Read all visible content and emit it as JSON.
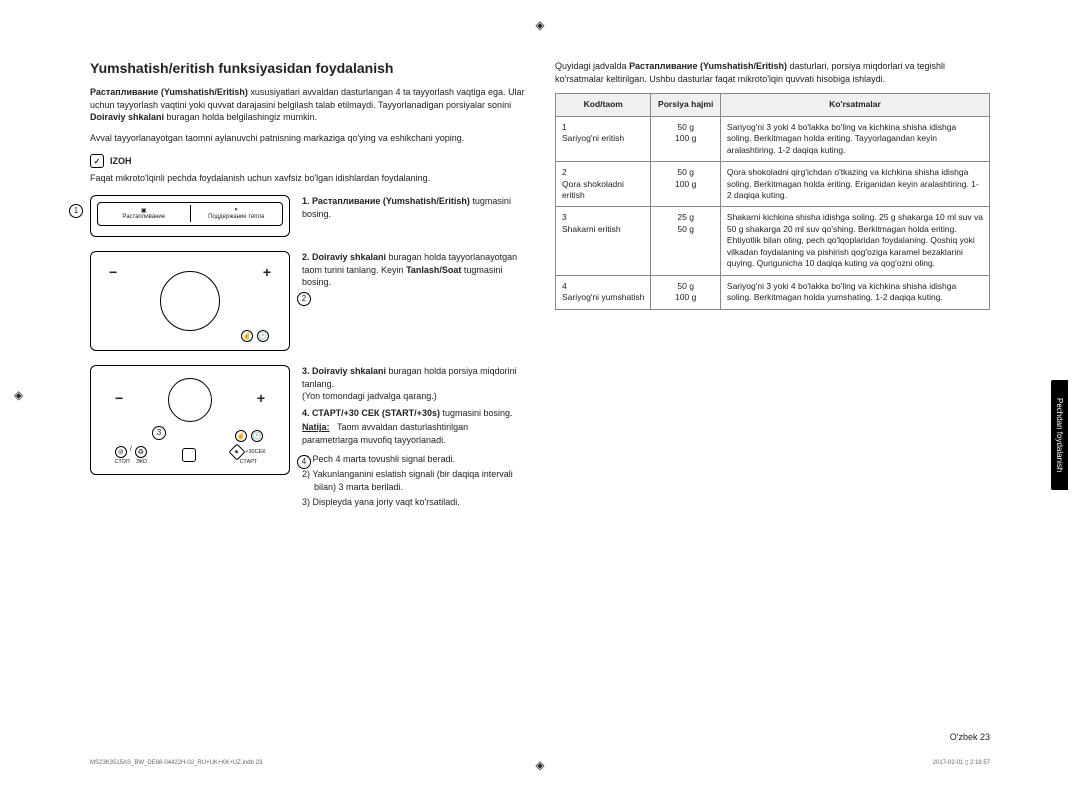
{
  "title": "Yumshatish/eritish funksiyasidan foydalanish",
  "intro": {
    "boldLead": "Растапливание (Yumshatish/Eritish)",
    "text1": " xususiyatlari avvaldan dasturlangan 4 ta tayyorlash vaqtiga ega. Ular uchun tayyorlash vaqtini yoki quvvat darajasini belgilash talab etilmaydi. Tayyorlanadigan porsiyalar sonini ",
    "bold2": "Doiraviy shkalani",
    "text2": " buragan holda belgilashingiz mumkin.",
    "text3": "Avval tayyorlanayotgan taomni aylanuvchi patnisning markaziga qo'ying va eshikchani yoping."
  },
  "noteLabel": "IZOH",
  "noteText": "Faqat mikroto'lqinli pechda foydalanish uchun xavfsiz bo'lgan idishlardan foydalaning.",
  "display": {
    "leftIcon": "▣",
    "leftLabel": "Растапливание",
    "rightIcon": "⏸",
    "rightLabel": "Поддержание тепла"
  },
  "panel": {
    "stop": "СТОП",
    "eco": "ЭКО",
    "start": "СТАРТ",
    "plus30": "+30СЕК"
  },
  "step1": {
    "bold": "1. Растапливание (Yumshatish/Eritish)",
    "tail": " tugmasini bosing."
  },
  "step2": {
    "bold": "2. Doiraviy shkalani",
    "tail": " buragan holda tayyorlanayotgan taom turini tanlang. Keyin ",
    "bold2": "Tanlash/Soat",
    "tail2": " tugmasini bosing."
  },
  "step3": {
    "bold": "3. Doiraviy shkalani",
    "tail": " buragan holda porsiya miqdorini tanlang.",
    "sub": "(Yon tomondagi jadvalga qarang.)"
  },
  "step4": {
    "bold": "4. СТАРТ/+30 СЕК (START/+30s)",
    "tail": " tugmasini bosing.",
    "resultLabel": "Natija:",
    "resultText": "Taom avvaldan dasturlashtirilgan parametrlarga muvofiq tayyorlanadi.",
    "list": [
      "1) Pech 4 marta tovushli signal beradi.",
      "2) Yakunlanganini eslatish signali (bir daqiqa intervali bilan) 3 marta beriladi.",
      "3) Displeyda yana joriy vaqt ko'rsatiladi."
    ]
  },
  "rightIntro1": "Quyidagi jadvalda ",
  "rightIntroBold": "Растапливание (Yumshatish/Eritish)",
  "rightIntro2": " dasturlari, porsiya miqdorlari va tegishli ko'rsatmalar keltirilgan. Ushbu dasturlar faqat mikroto'lqin quvvati hisobiga ishlaydi.",
  "table": {
    "headers": [
      "Kod/taom",
      "Porsiya hajmi",
      "Ko'rsatmalar"
    ],
    "rows": [
      {
        "code": "1\nSariyog'ni eritish",
        "portion": "50 g\n100 g",
        "instr": "Sariyog'ni 3 yoki 4 bo'lakka bo'ling va kichkina shisha idishga soling. Berkitmagan holda eriting. Tayyorlagandan keyin aralashtiring. 1-2 daqiqa kuting."
      },
      {
        "code": "2\nQora shokoladni eritish",
        "portion": "50 g\n100 g",
        "instr": "Qora shokoladni qirg'ichdan o'tkazing va kichkina shisha idishga soling. Berkitmagan holda eriting. Eriganidan keyin aralashtiring. 1-2 daqiqa kuting."
      },
      {
        "code": "3\nShakarni eritish",
        "portion": "25 g\n50 g",
        "instr": "Shakarni kichkina shisha idishga soling. 25 g shakarga 10 ml suv va 50 g shakarga 20 ml suv qo'shing. Berkitmagan holda eriting. Ehtiyotlik bilan oling, pech qo'lqoplaridan foydalaning. Qoshiq yoki vilkadan foydalaning va pishirish qog'oziga karamel bezaklarini quying. Qurigunicha 10 daqiqa kuting va qog'ozni oling."
      },
      {
        "code": "4\nSariyog'ni yumshatish",
        "portion": "50 g\n100 g",
        "instr": "Sariyog'ni 3 yoki 4 bo'lakka bo'ling va kichkina shisha idishga soling. Berkitmagan holda yumshating. 1-2 daqiqa kuting."
      }
    ]
  },
  "sideTab": "Pechdan foydalanish",
  "pageLabel": "O'zbek  23",
  "footerL": "MS23K3515AS_BW_DE68-04422H-02_RU+UK+KK+UZ.indb   23",
  "footerR": "2017-02-01   ▯ 2:18:57"
}
